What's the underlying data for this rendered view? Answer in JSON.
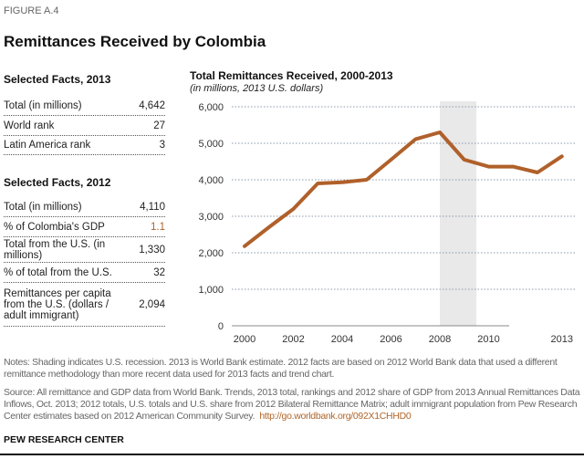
{
  "figure_label": "FIGURE A.4",
  "title": "Remittances Received by Colombia",
  "facts2013": {
    "heading": "Selected Facts, 2013",
    "rows": [
      {
        "label": "Total (in millions)",
        "value": "4,642"
      },
      {
        "label": "World rank",
        "value": "27"
      },
      {
        "label": "Latin America rank",
        "value": "3"
      }
    ]
  },
  "facts2012": {
    "heading": "Selected Facts, 2012",
    "rows": [
      {
        "label": "Total (in millions)",
        "value": "4,110"
      },
      {
        "label": "% of Colombia's  GDP",
        "value": "1.1"
      },
      {
        "label": "Total from the U.S. (in millions)",
        "value": "1,330"
      },
      {
        "label": "% of total from the U.S.",
        "value": "32"
      },
      {
        "label": "Remittances per capita from the U.S. (dollars / adult immigrant)",
        "value": "2,094"
      }
    ]
  },
  "notes": "Notes: Shading indicates U.S. recession. 2013 is World Bank estimate. 2012 facts are based on 2012 World Bank data that used a different remittance methodology than more recent data used for 2013 facts and trend chart.",
  "source": "Source: All remittance and GDP data from World Bank. Trends, 2013 total, rankings and 2012 share of GDP from 2013 Annual Remittances Data Inflows, Oct. 2013; 2012 totals, U.S. totals and U.S. share from 2012 Bilateral Remittance Matrix; adult immigrant population from Pew Research Center estimates based on 2012 American Community Survey.",
  "source_link": "http://go.worldbank.org/092X1CHHD0",
  "footer": "PEW RESEARCH CENTER",
  "chart_data": {
    "type": "line",
    "title": "Total Remittances Received, 2000-2013",
    "subtitle": "(in millions, 2013 U.S. dollars)",
    "x": [
      2000,
      2001,
      2002,
      2003,
      2004,
      2005,
      2006,
      2007,
      2008,
      2009,
      2010,
      2011,
      2012,
      2013
    ],
    "values": [
      2180,
      2700,
      3200,
      3900,
      3930,
      4000,
      4550,
      5110,
      5300,
      4550,
      4360,
      4360,
      4200,
      4642
    ],
    "ylim": [
      0,
      6000
    ],
    "yticks": [
      "0",
      "1,000",
      "2,000",
      "3,000",
      "4,000",
      "5,000",
      "6,000"
    ],
    "xticks": [
      "2000",
      "2002",
      "2004",
      "2006",
      "2008",
      "2010",
      "2013"
    ],
    "xtick_values": [
      2000,
      2002,
      2004,
      2006,
      2008,
      2010,
      2013
    ],
    "recession": [
      2008,
      2009.5
    ],
    "grid": true,
    "line_color": "#b0602a",
    "shade_color": "#e9e9e9"
  }
}
